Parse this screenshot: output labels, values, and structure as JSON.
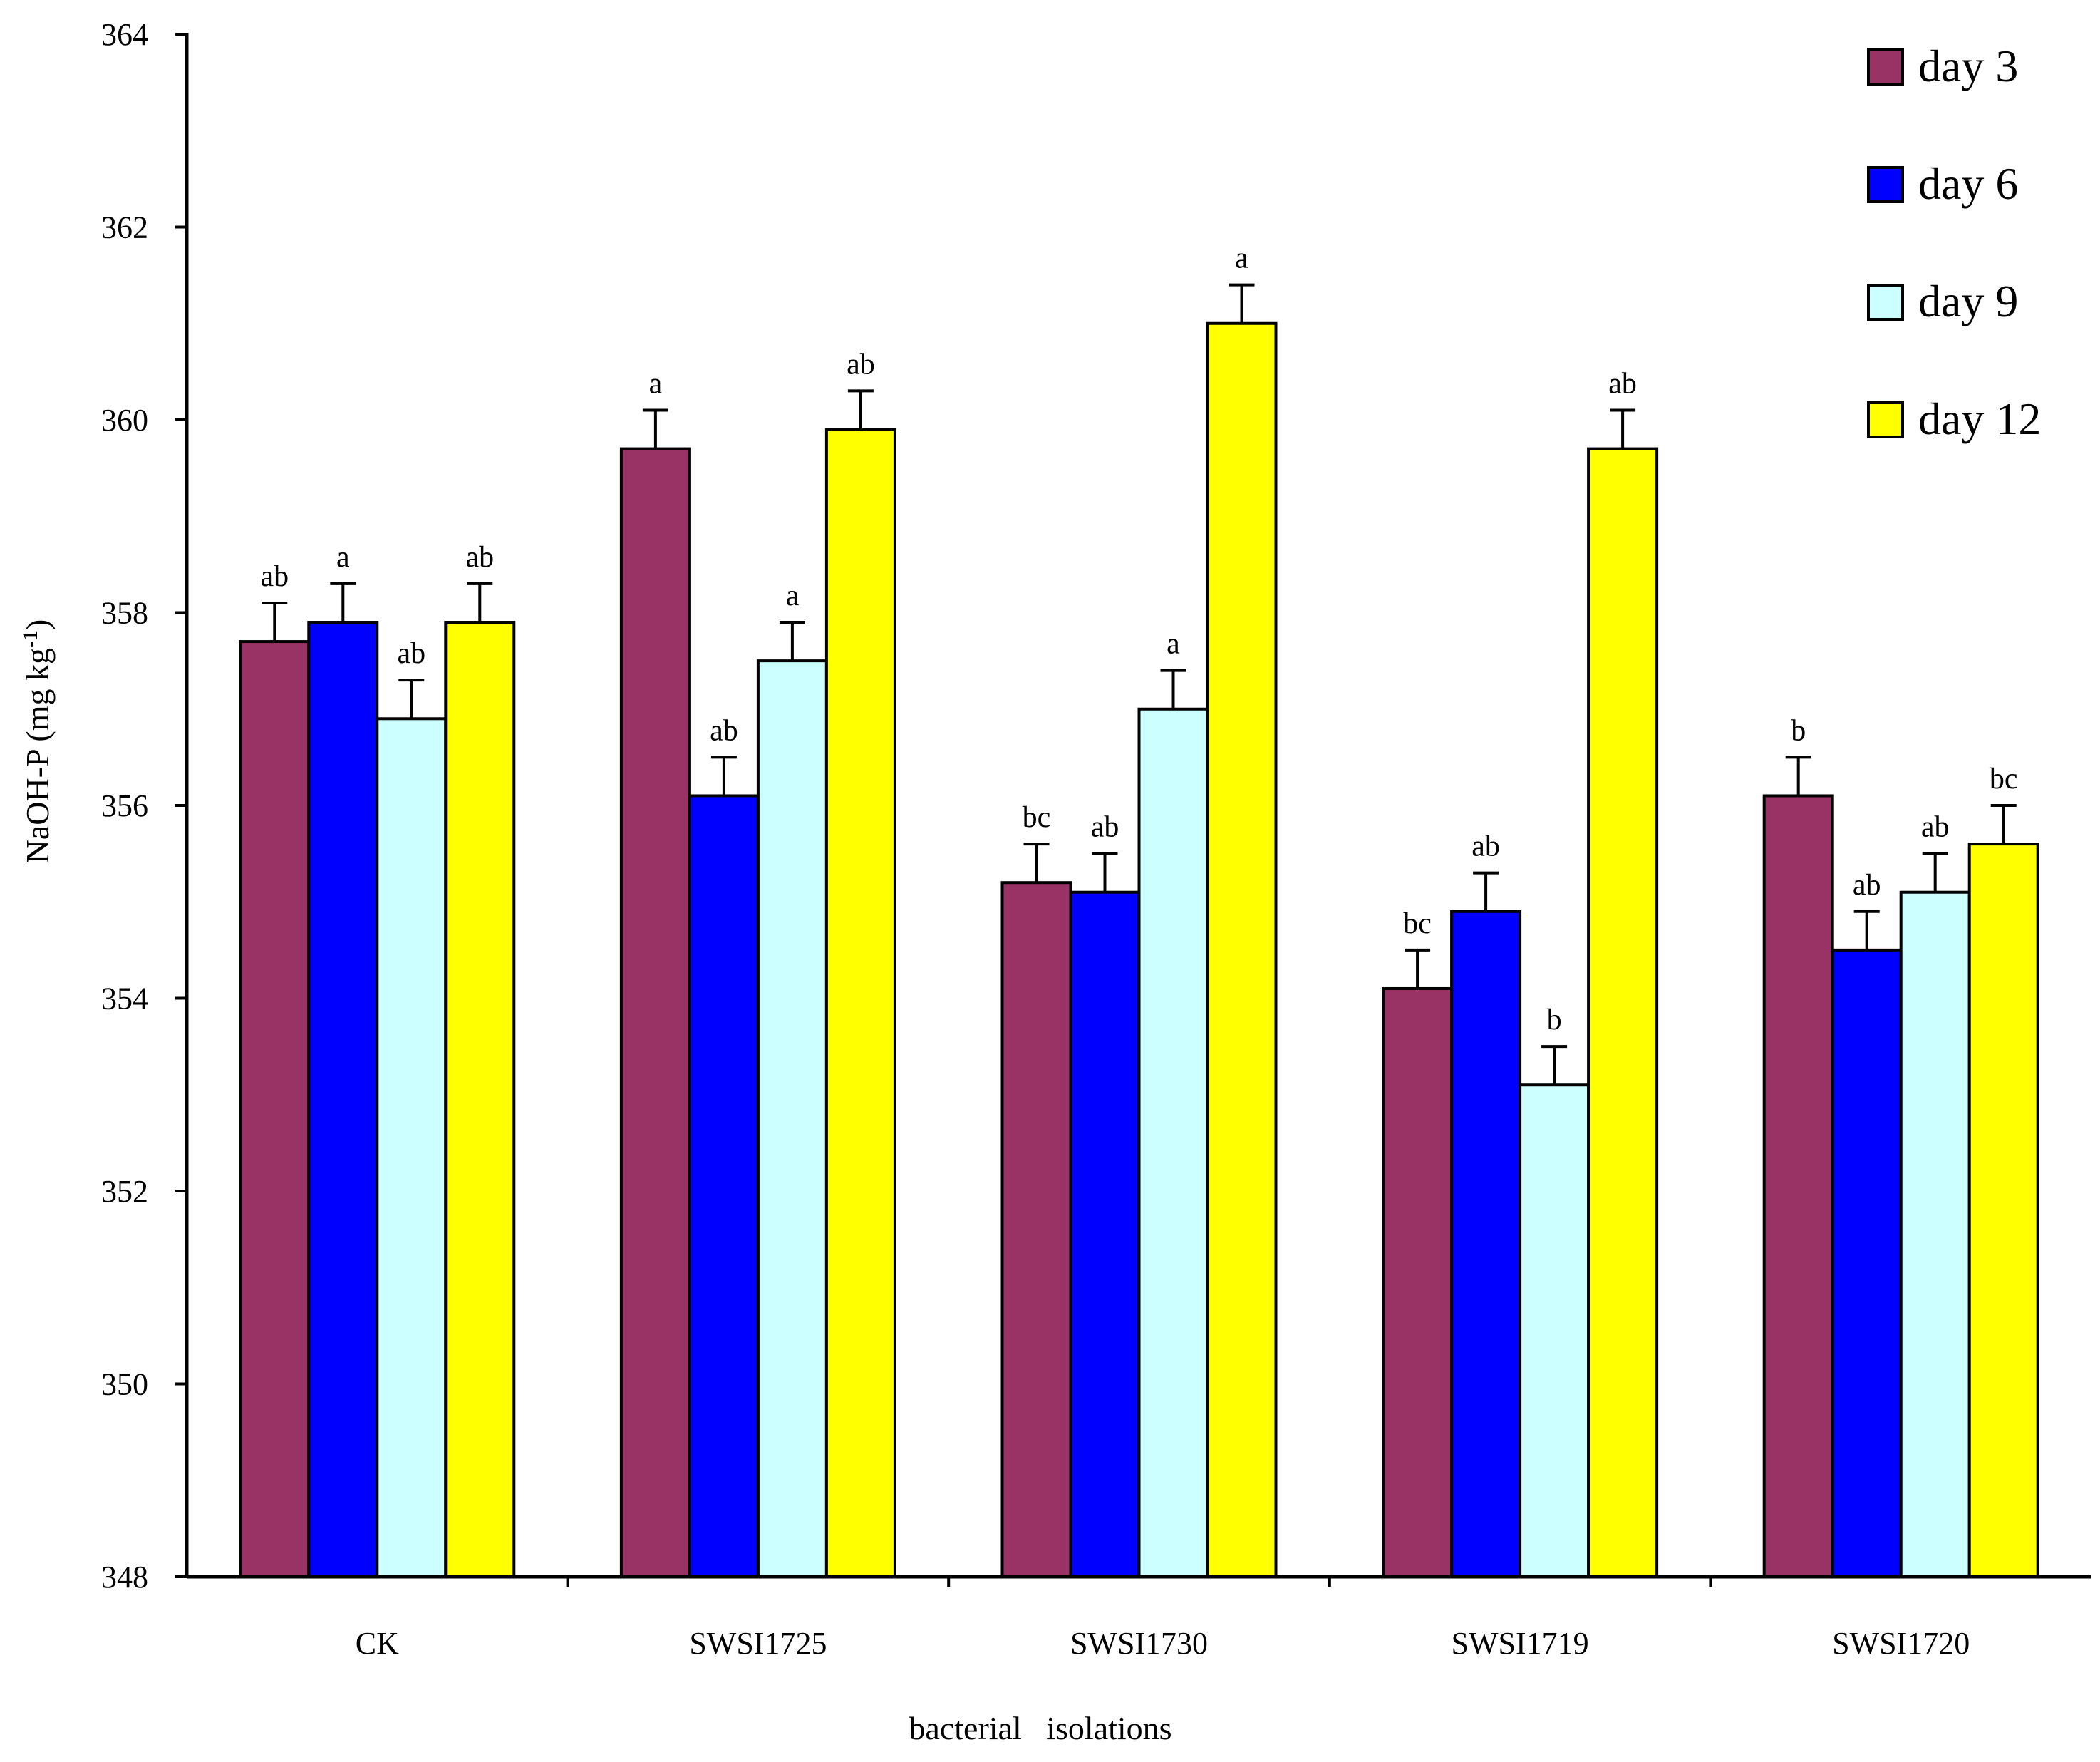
{
  "chart_data": {
    "type": "bar",
    "title": "",
    "xlabel": "bacterial   isolations",
    "ylabel": "NaOH-P (mg kg",
    "ylabel_superscript": "-1",
    "ylabel_suffix": ")",
    "ylim": [
      348,
      364
    ],
    "yticks": [
      "348",
      "350",
      "352",
      "354",
      "356",
      "358",
      "360",
      "362",
      "364"
    ],
    "grid": false,
    "legend_position": "top-right",
    "categories": [
      "CK",
      "SWSI1725",
      "SWSI1730",
      "SWSI1719",
      "SWSI1720"
    ],
    "series": [
      {
        "name": "day 3",
        "color": "#993366",
        "values": [
          357.7,
          359.7,
          355.2,
          354.1,
          356.1
        ],
        "errors": [
          0.4,
          0.4,
          0.4,
          0.4,
          0.4
        ],
        "labels": [
          "ab",
          "a",
          "bc",
          "bc",
          "b"
        ]
      },
      {
        "name": "day 6",
        "color": "#0000ff",
        "values": [
          357.9,
          356.1,
          355.1,
          354.9,
          354.5
        ],
        "errors": [
          0.4,
          0.4,
          0.4,
          0.4,
          0.4
        ],
        "labels": [
          "a",
          "ab",
          "ab",
          "ab",
          "ab"
        ]
      },
      {
        "name": "day 9",
        "color": "#ccffff",
        "values": [
          356.9,
          357.5,
          357.0,
          353.1,
          355.1
        ],
        "errors": [
          0.4,
          0.4,
          0.4,
          0.4,
          0.4
        ],
        "labels": [
          "ab",
          "a",
          "a",
          "b",
          "ab"
        ]
      },
      {
        "name": "day 12",
        "color": "#ffff00",
        "values": [
          357.9,
          359.9,
          361.0,
          359.7,
          355.6
        ],
        "errors": [
          0.4,
          0.4,
          0.4,
          0.4,
          0.4
        ],
        "labels": [
          "ab",
          "ab",
          "a",
          "ab",
          "bc"
        ]
      }
    ]
  }
}
